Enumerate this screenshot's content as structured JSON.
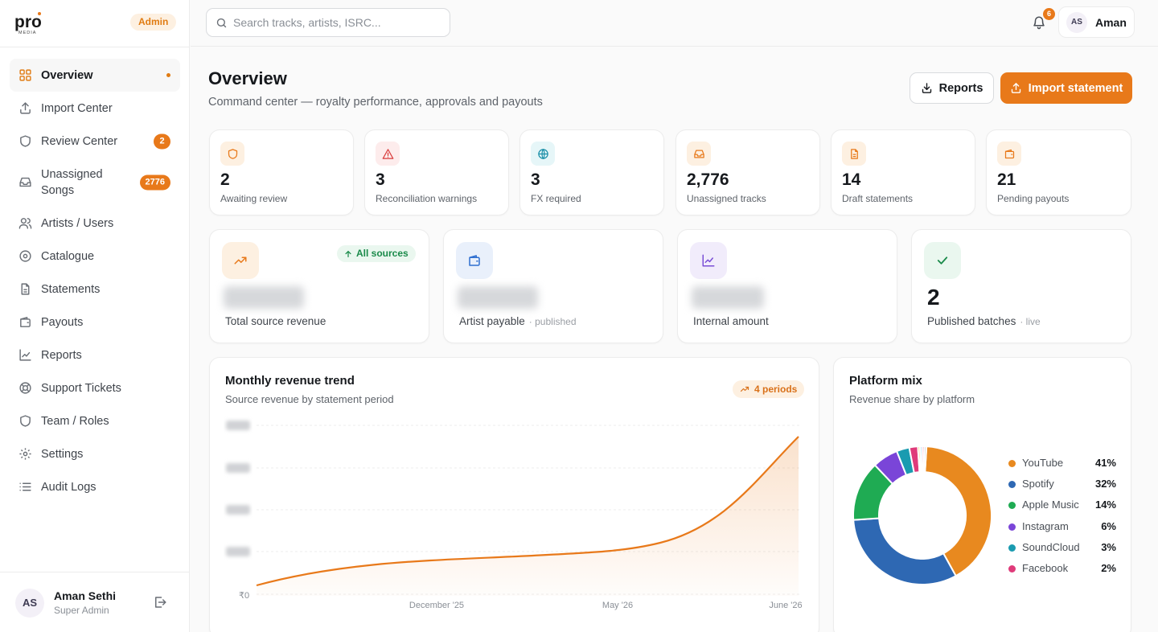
{
  "brand": {
    "logo_text": "pro",
    "logo_sub": "MEDIA",
    "role_badge": "Admin"
  },
  "sidebar": {
    "items": [
      {
        "label": "Overview",
        "icon": "grid-icon",
        "active": true
      },
      {
        "label": "Import Center",
        "icon": "upload-icon"
      },
      {
        "label": "Review Center",
        "icon": "shield-icon",
        "count": "2"
      },
      {
        "label": "Unassigned Songs",
        "icon": "inbox-icon",
        "count": "2776"
      },
      {
        "label": "Artists / Users",
        "icon": "users-icon"
      },
      {
        "label": "Catalogue",
        "icon": "disc-icon"
      },
      {
        "label": "Statements",
        "icon": "document-icon"
      },
      {
        "label": "Payouts",
        "icon": "wallet-icon"
      },
      {
        "label": "Reports",
        "icon": "chart-icon"
      },
      {
        "label": "Support Tickets",
        "icon": "lifebuoy-icon"
      },
      {
        "label": "Team / Roles",
        "icon": "shield-icon"
      },
      {
        "label": "Settings",
        "icon": "gear-icon"
      },
      {
        "label": "Audit Logs",
        "icon": "list-icon"
      }
    ],
    "user": {
      "initials": "AS",
      "name": "Aman Sethi",
      "role": "Super Admin"
    }
  },
  "topbar": {
    "search_placeholder": "Search tracks, artists, ISRC...",
    "notifications": "6",
    "user_initials": "AS",
    "user_name": "Aman"
  },
  "header": {
    "title": "Overview",
    "subtitle": "Command center — royalty performance, approvals and payouts",
    "reports_label": "Reports",
    "import_label": "Import statement"
  },
  "stats": [
    {
      "value": "2",
      "label": "Awaiting review",
      "icon": "shield-icon",
      "color": "#e8791a",
      "bg": "#fdf0e1"
    },
    {
      "value": "3",
      "label": "Reconciliation warnings",
      "icon": "warning-icon",
      "color": "#d93a3a",
      "bg": "#fdecec"
    },
    {
      "value": "3",
      "label": "FX required",
      "icon": "globe-icon",
      "color": "#1a8fa8",
      "bg": "#e6f6f8"
    },
    {
      "value": "2,776",
      "label": "Unassigned tracks",
      "icon": "inbox-icon",
      "color": "#e8791a",
      "bg": "#fdf0e1"
    },
    {
      "value": "14",
      "label": "Draft statements",
      "icon": "document-icon",
      "color": "#e8791a",
      "bg": "#fdf0e1"
    },
    {
      "value": "21",
      "label": "Pending payouts",
      "icon": "wallet-icon",
      "color": "#e8791a",
      "bg": "#fdf0e1"
    }
  ],
  "big_cards": [
    {
      "label": "Total source revenue",
      "sub": "",
      "icon": "trend-up-icon",
      "color": "#e8791a",
      "bg": "#fdf0e1",
      "value": "",
      "blurred": true,
      "pill": "All sources"
    },
    {
      "label": "Artist payable",
      "sub": "· published",
      "icon": "wallet-icon",
      "color": "#2f6fd0",
      "bg": "#e9f0fb",
      "value": "",
      "blurred": true
    },
    {
      "label": "Internal amount",
      "sub": "",
      "icon": "chart-icon",
      "color": "#7a4fd6",
      "bg": "#f1ecfb",
      "value": "",
      "blurred": true
    },
    {
      "label": "Published batches",
      "sub": "· live",
      "icon": "check-icon",
      "color": "#1a8a4a",
      "bg": "#eaf7ef",
      "value": "2",
      "blurred": false
    }
  ],
  "trend": {
    "title": "Monthly revenue trend",
    "subtitle": "Source revenue by statement period",
    "pill": "4 periods"
  },
  "mix": {
    "title": "Platform mix",
    "subtitle": "Revenue share by platform"
  },
  "chart_data": [
    {
      "type": "area",
      "title": "Monthly revenue trend",
      "x": [
        "December '25",
        "May '26",
        "June '26"
      ],
      "y_tick_visible": "₹0",
      "values_hidden": true,
      "line_color": "#e8791a",
      "grid": true
    },
    {
      "type": "pie",
      "title": "Platform mix",
      "categories": [
        "YouTube",
        "Spotify",
        "Apple Music",
        "Instagram",
        "SoundCloud",
        "Facebook"
      ],
      "values": [
        41,
        32,
        14,
        6,
        3,
        2
      ],
      "labels": [
        "41%",
        "32%",
        "14%",
        "6%",
        "3%",
        "2%"
      ],
      "colors": [
        "#e8891f",
        "#2e68b3",
        "#1fab53",
        "#7a45d8",
        "#1a9bb0",
        "#df3b7a"
      ],
      "extra_slice_colors": [
        "#f2c14e",
        "#9ad0ec",
        "#f08fb4",
        "#c9c9c9"
      ],
      "legend": "right"
    }
  ]
}
